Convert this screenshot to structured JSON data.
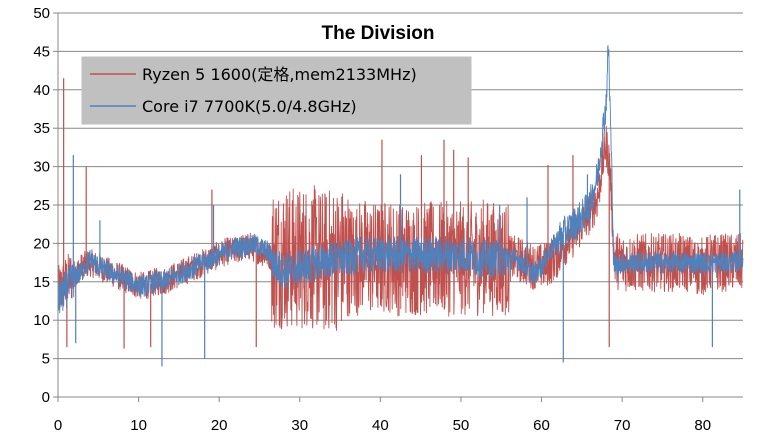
{
  "chart_data": {
    "type": "line",
    "title": "The Division",
    "xlabel": "",
    "ylabel": "",
    "xlim": [
      0,
      85
    ],
    "ylim": [
      0,
      50
    ],
    "x_ticks": [
      0,
      10,
      20,
      30,
      40,
      50,
      60,
      70,
      80
    ],
    "y_ticks": [
      0,
      5,
      10,
      15,
      20,
      25,
      30,
      35,
      40,
      45,
      50
    ],
    "grid": "horizontal",
    "legend_position": "top-left",
    "series": [
      {
        "name": "Ryzen 5 1600(定格,mem2133MHz)",
        "color": "#c0504d",
        "points": [
          [
            0,
            13.5
          ],
          [
            1,
            15
          ],
          [
            2,
            16
          ],
          [
            3,
            17
          ],
          [
            4,
            17.5
          ],
          [
            5,
            17
          ],
          [
            6,
            16.5
          ],
          [
            7,
            16
          ],
          [
            8,
            15.5
          ],
          [
            9,
            15
          ],
          [
            10,
            14.5
          ],
          [
            11,
            14.5
          ],
          [
            12,
            15
          ],
          [
            13,
            15
          ],
          [
            14,
            15.5
          ],
          [
            15,
            16
          ],
          [
            16,
            16.5
          ],
          [
            17,
            17
          ],
          [
            18,
            17.5
          ],
          [
            19,
            18
          ],
          [
            20,
            18.5
          ],
          [
            21,
            19
          ],
          [
            22,
            19
          ],
          [
            23,
            19.5
          ],
          [
            24,
            19.5
          ],
          [
            25,
            19
          ],
          [
            26,
            18.5
          ],
          [
            27,
            18
          ],
          [
            28,
            18.5
          ],
          [
            29,
            18
          ],
          [
            30,
            18
          ],
          [
            31,
            18.5
          ],
          [
            32,
            18
          ],
          [
            33,
            17.5
          ],
          [
            34,
            18
          ],
          [
            35,
            18
          ],
          [
            36,
            18
          ],
          [
            37,
            18
          ],
          [
            38,
            18.5
          ],
          [
            39,
            18
          ],
          [
            40,
            18
          ],
          [
            41,
            18.5
          ],
          [
            42,
            18
          ],
          [
            43,
            18
          ],
          [
            44,
            18
          ],
          [
            45,
            18
          ],
          [
            46,
            18
          ],
          [
            47,
            18
          ],
          [
            48,
            18
          ],
          [
            49,
            18
          ],
          [
            50,
            18
          ],
          [
            51,
            18
          ],
          [
            52,
            18
          ],
          [
            53,
            18.5
          ],
          [
            54,
            18
          ],
          [
            55,
            18
          ],
          [
            56,
            18
          ],
          [
            57,
            18
          ],
          [
            58,
            17.5
          ],
          [
            59,
            17
          ],
          [
            60,
            17
          ],
          [
            61,
            17.5
          ],
          [
            62,
            18.5
          ],
          [
            63,
            20
          ],
          [
            64,
            21
          ],
          [
            65,
            22.5
          ],
          [
            66,
            24
          ],
          [
            67,
            26
          ],
          [
            67.5,
            30
          ],
          [
            68,
            33
          ],
          [
            68.5,
            30
          ],
          [
            69,
            18
          ],
          [
            70,
            17.5
          ],
          [
            71,
            17.5
          ],
          [
            72,
            17.5
          ],
          [
            73,
            17.5
          ],
          [
            74,
            17.5
          ],
          [
            75,
            17.5
          ],
          [
            76,
            17.5
          ],
          [
            77,
            17.5
          ],
          [
            78,
            17.5
          ],
          [
            79,
            17
          ],
          [
            80,
            17
          ],
          [
            81,
            17.5
          ],
          [
            82,
            17.5
          ],
          [
            83,
            17.5
          ],
          [
            84,
            17.5
          ],
          [
            85,
            17.5
          ]
        ],
        "spikes": [
          [
            0.7,
            41.5
          ],
          [
            1.1,
            6.5
          ],
          [
            3.5,
            30
          ],
          [
            8.2,
            6.3
          ],
          [
            11.5,
            6.5
          ],
          [
            19.1,
            27
          ],
          [
            24.6,
            6.5
          ],
          [
            40.2,
            33.5
          ],
          [
            45.1,
            31.5
          ],
          [
            47.9,
            33.5
          ],
          [
            49.1,
            32.2
          ],
          [
            50.9,
            31.2
          ],
          [
            60.8,
            30.2
          ],
          [
            63.9,
            31.5
          ],
          [
            68.4,
            6.5
          ]
        ]
      },
      {
        "name": "Core i7 7700K(5.0/4.8GHz)",
        "color": "#4f81bd",
        "points": [
          [
            0,
            12.5
          ],
          [
            1,
            14
          ],
          [
            2,
            15.5
          ],
          [
            3,
            16.5
          ],
          [
            4,
            18
          ],
          [
            5,
            17
          ],
          [
            6,
            16.5
          ],
          [
            7,
            16
          ],
          [
            8,
            15.5
          ],
          [
            9,
            15
          ],
          [
            10,
            14.5
          ],
          [
            11,
            14.5
          ],
          [
            12,
            15
          ],
          [
            13,
            15
          ],
          [
            14,
            15.5
          ],
          [
            15,
            16
          ],
          [
            16,
            16.5
          ],
          [
            17,
            17
          ],
          [
            18,
            17.5
          ],
          [
            19,
            18
          ],
          [
            20,
            18.5
          ],
          [
            21,
            19
          ],
          [
            22,
            19.5
          ],
          [
            23,
            19.5
          ],
          [
            24,
            20
          ],
          [
            25,
            19.5
          ],
          [
            26,
            19
          ],
          [
            27,
            17
          ],
          [
            28,
            16.5
          ],
          [
            29,
            16.5
          ],
          [
            30,
            17
          ],
          [
            31,
            17
          ],
          [
            32,
            17.5
          ],
          [
            33,
            17.5
          ],
          [
            34,
            18
          ],
          [
            35,
            18
          ],
          [
            36,
            18
          ],
          [
            37,
            18.5
          ],
          [
            38,
            18.5
          ],
          [
            39,
            18.5
          ],
          [
            40,
            18.5
          ],
          [
            41,
            18.5
          ],
          [
            42,
            18.5
          ],
          [
            43,
            18.5
          ],
          [
            44,
            18.5
          ],
          [
            45,
            18.5
          ],
          [
            46,
            18.5
          ],
          [
            47,
            18.5
          ],
          [
            48,
            18.5
          ],
          [
            49,
            18.5
          ],
          [
            50,
            18.5
          ],
          [
            51,
            18.5
          ],
          [
            52,
            18
          ],
          [
            53,
            18
          ],
          [
            54,
            18
          ],
          [
            55,
            18
          ],
          [
            56,
            18
          ],
          [
            57,
            18
          ],
          [
            58,
            17
          ],
          [
            59,
            16
          ],
          [
            60,
            17
          ],
          [
            61,
            19
          ],
          [
            62,
            20.5
          ],
          [
            63,
            21.5
          ],
          [
            64,
            22.5
          ],
          [
            65,
            23.5
          ],
          [
            66,
            25
          ],
          [
            66.5,
            27
          ],
          [
            67,
            29
          ],
          [
            67.5,
            34
          ],
          [
            68,
            38
          ],
          [
            68.3,
            46
          ],
          [
            68.6,
            34
          ],
          [
            69,
            17
          ],
          [
            70,
            17.5
          ],
          [
            71,
            17.5
          ],
          [
            72,
            17.5
          ],
          [
            73,
            17.5
          ],
          [
            74,
            17.5
          ],
          [
            75,
            17.5
          ],
          [
            76,
            17.5
          ],
          [
            77,
            17.5
          ],
          [
            78,
            17.5
          ],
          [
            79,
            17.5
          ],
          [
            80,
            17.5
          ],
          [
            81,
            17.5
          ],
          [
            82,
            17.5
          ],
          [
            83,
            17.5
          ],
          [
            84,
            17.5
          ],
          [
            85,
            18
          ]
        ],
        "spikes": [
          [
            1.9,
            31.5
          ],
          [
            2.2,
            7
          ],
          [
            5.2,
            23
          ],
          [
            12.9,
            4
          ],
          [
            18.2,
            5
          ],
          [
            19.3,
            25
          ],
          [
            42.5,
            29
          ],
          [
            54.8,
            25
          ],
          [
            58.2,
            26
          ],
          [
            62.7,
            4.5
          ],
          [
            65.7,
            29
          ],
          [
            81.2,
            6.5
          ],
          [
            84.6,
            27
          ]
        ]
      }
    ]
  }
}
